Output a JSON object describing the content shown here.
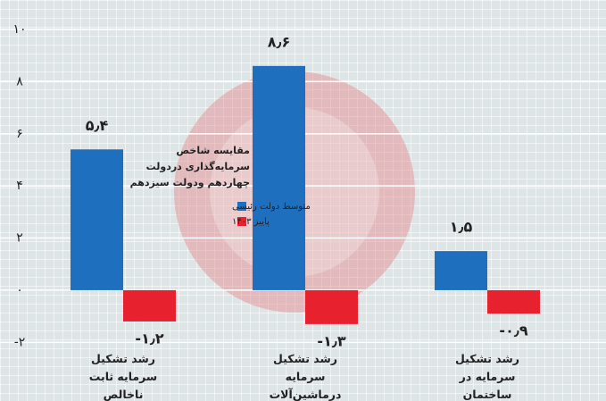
{
  "chart_data": {
    "type": "bar",
    "title": "مقایسه شاخص سرمایه‌گذاری دردولت چهاردهم ودولت سیزدهم",
    "categories": [
      "رشد تشکیل سرمایه ثابت ناخالص",
      "رشد تشکیل سرمایه درماشین‌آلات",
      "رشد تشکیل سرمایه در ساختمان"
    ],
    "series": [
      {
        "name": "متوسط دولت رئیسی",
        "color": "#1f6fbf",
        "values": [
          5.4,
          8.6,
          1.5
        ],
        "value_labels": [
          "۵٫۴",
          "۸٫۶",
          "۱٫۵"
        ]
      },
      {
        "name": "پاییز ۱۴۰۳",
        "color": "#e8212e",
        "values": [
          -1.2,
          -1.3,
          -0.9
        ],
        "value_labels": [
          "-۱٫۲",
          "-۱٫۳",
          "-۰٫۹"
        ]
      }
    ],
    "ylim": [
      -4.25,
      11.13
    ],
    "yticks": [
      {
        "value": -2,
        "label": "-۲"
      },
      {
        "value": 0,
        "label": "۰"
      },
      {
        "value": 2,
        "label": "۲"
      },
      {
        "value": 4,
        "label": "۴"
      },
      {
        "value": 6,
        "label": "۶"
      },
      {
        "value": 8,
        "label": "۸"
      },
      {
        "value": 10,
        "label": "۱۰"
      }
    ],
    "grid": true,
    "legend": "center"
  }
}
